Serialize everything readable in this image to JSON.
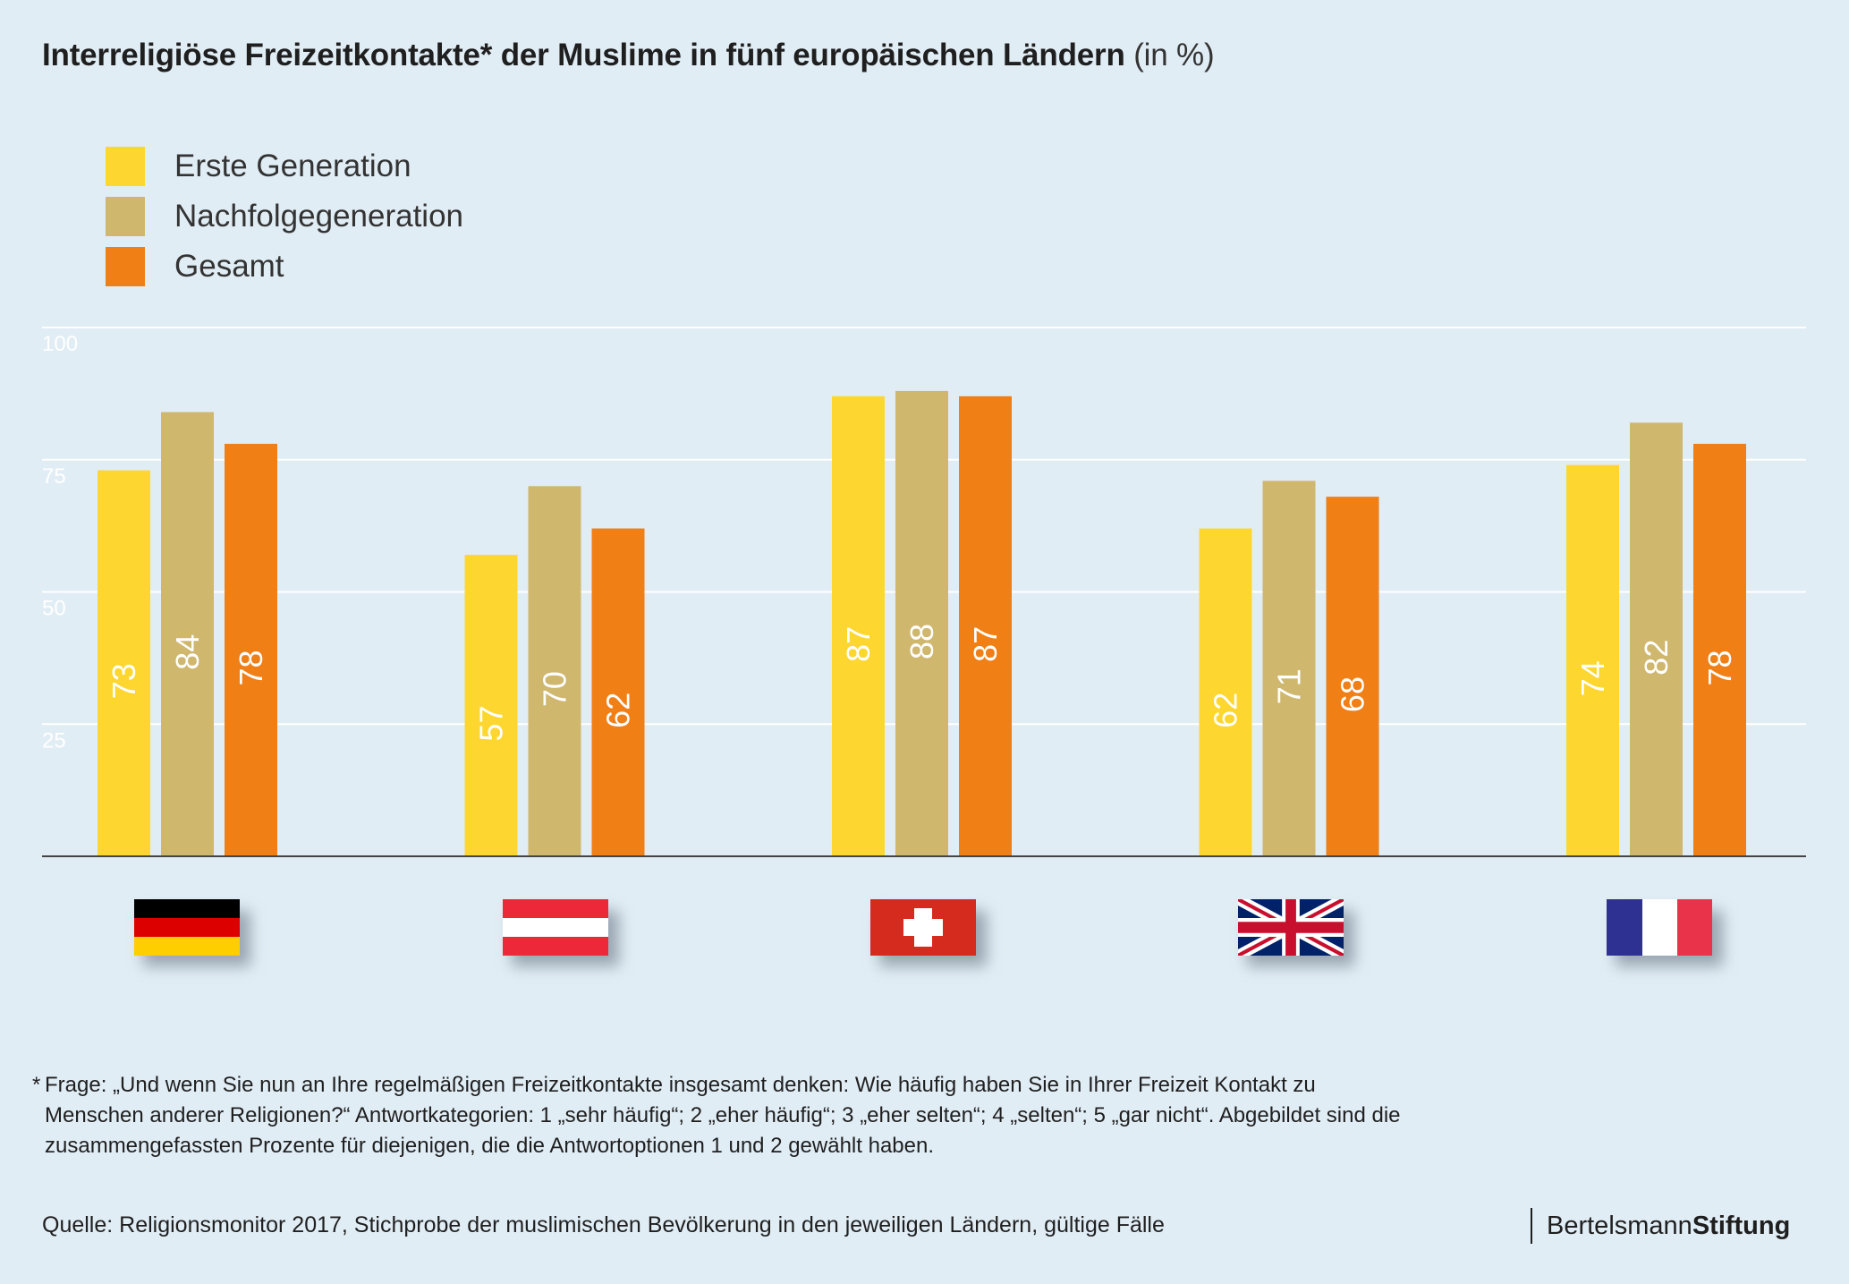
{
  "title": {
    "main": "Interreligiöse Freizeitkontakte* der Muslime in fünf europäischen Ländern",
    "unit": "(in %)"
  },
  "legend": [
    {
      "label": "Erste Generation",
      "color": "#fdd72f"
    },
    {
      "label": "Nachfolgegeneration",
      "color": "#cfb76e"
    },
    {
      "label": "Gesamt",
      "color": "#f07f16"
    }
  ],
  "chart_data": {
    "type": "bar",
    "title": "Interreligiöse Freizeitkontakte* der Muslime in fünf europäischen Ländern (in %)",
    "categories": [
      "Deutschland",
      "Österreich",
      "Schweiz",
      "Großbritannien",
      "Frankreich"
    ],
    "category_display": "flags",
    "series": [
      {
        "name": "Erste Generation",
        "color": "#fdd72f",
        "values": [
          73,
          57,
          87,
          62,
          74
        ]
      },
      {
        "name": "Nachfolgegeneration",
        "color": "#cfb76e",
        "values": [
          84,
          70,
          88,
          71,
          82
        ]
      },
      {
        "name": "Gesamt",
        "color": "#f07f16",
        "values": [
          78,
          62,
          87,
          68,
          78
        ]
      }
    ],
    "yticks": [
      25,
      50,
      75,
      100
    ],
    "ylim": [
      0,
      100
    ],
    "grid": true,
    "legend_position": "top-left",
    "data_labels": "inside bars, rotated"
  },
  "footnote": {
    "star": "*",
    "text": "Frage: „Und wenn Sie nun an Ihre regelmäßigen Freizeitkontakte insgesamt denken: Wie häufig haben Sie in Ihrer Freizeit Kontakt zu Menschen anderer Religionen?“ Antwortkategorien: 1 „sehr häufig“; 2 „eher häufig“; 3 „eher selten“; 4 „selten“; 5 „gar nicht“. Abgebildet sind die zusammengefassten Prozente für diejenigen, die die Antwortoptionen 1 und 2 gewählt haben."
  },
  "source": "Quelle: Religionsmonitor 2017, Stichprobe der muslimischen Bevölkerung in den jeweiligen Ländern, gültige Fälle",
  "brand": {
    "part1": "Bertelsmann",
    "part2": "Stiftung"
  },
  "colors": {
    "background": "#e1edf5",
    "grid": "#ffffff",
    "axis": "#444444",
    "value_label": "#ffffff",
    "tick_label": "#ffffff"
  }
}
